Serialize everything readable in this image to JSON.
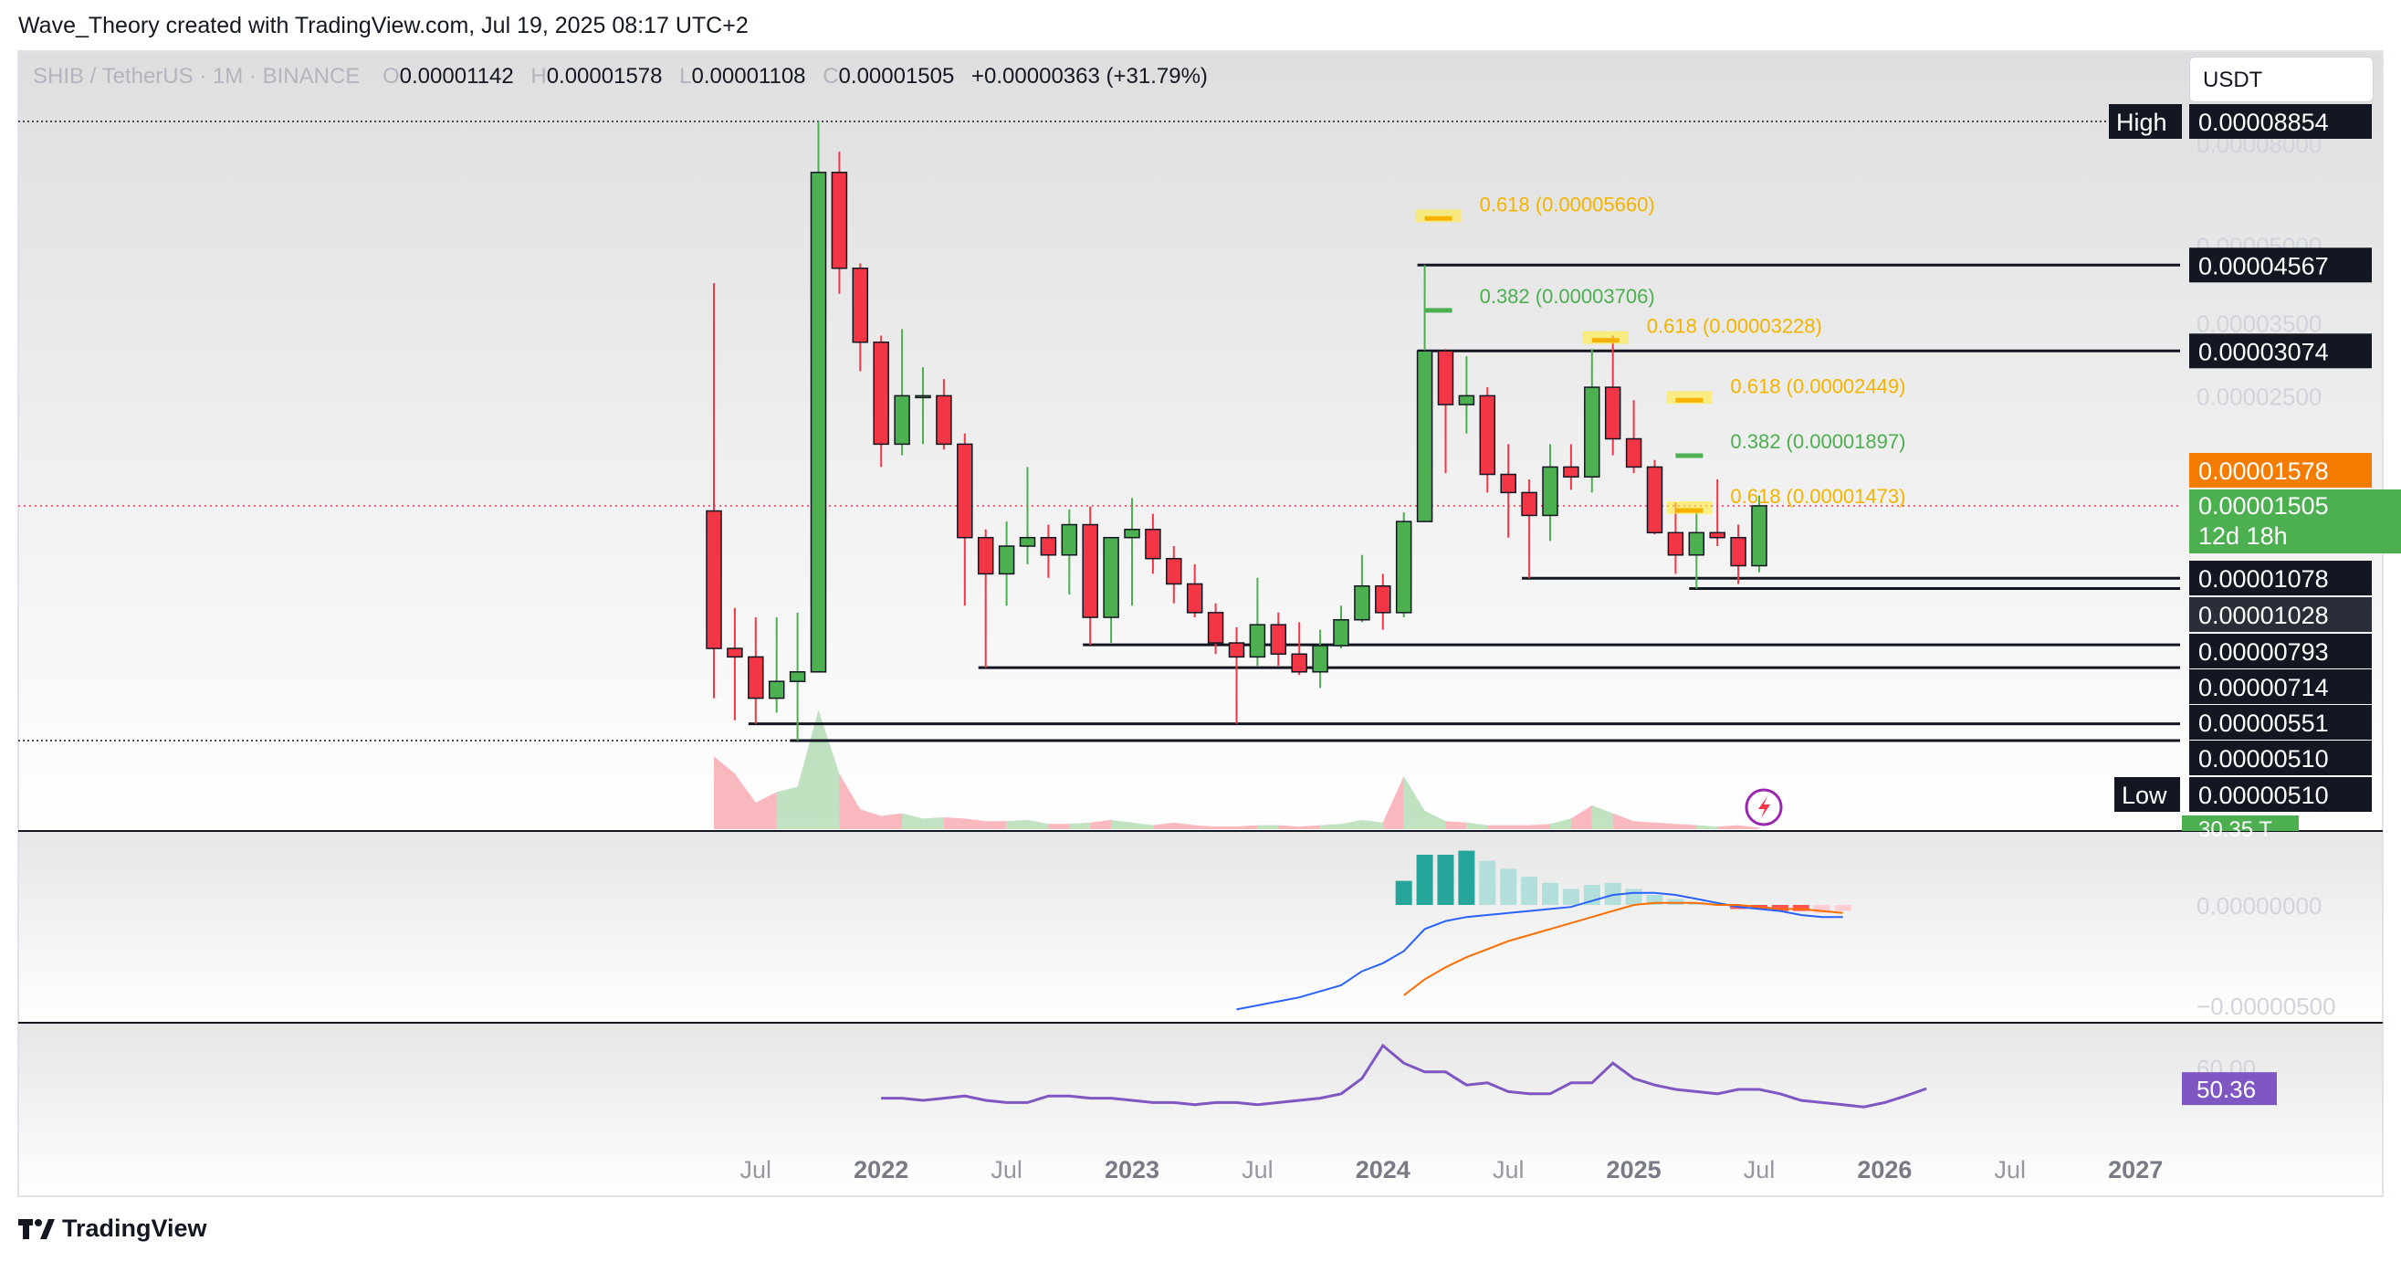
{
  "header": {
    "credit": "Wave_Theory created with TradingView.com, Jul 19, 2025 08:17 UTC+2"
  },
  "legend": {
    "symbol": "SHIB / TetherUS · 1M · BINANCE",
    "open_label": "O",
    "open": "0.00001142",
    "high_label": "H",
    "high": "0.00001578",
    "low_label": "L",
    "low": "0.00001108",
    "close_label": "C",
    "close": "0.00001505",
    "change": "+0.00000363 (+31.79%)"
  },
  "currency": "USDT",
  "footer": {
    "brand": "TradingView",
    "logo_icon": "tradingview-logo-icon"
  },
  "colors": {
    "up": "#4caf50",
    "down": "#f23645",
    "fib_gold": "#f5b300",
    "fib_green": "#4caf50",
    "macd": "#2962ff",
    "signal": "#ff6d00",
    "rsi": "#7e57c2",
    "last_price": "#f23645"
  },
  "chart_data": [
    {
      "type": "candlestick",
      "title": "SHIB / TetherUS · 1M · BINANCE",
      "x_tick_labels": [
        "Jul",
        "2022",
        "Jul",
        "2023",
        "Jul",
        "2024",
        "Jul",
        "2025",
        "Jul",
        "2026",
        "Jul",
        "2027"
      ],
      "x_ticks": [
        "2021-07",
        "2022-01",
        "2022-07",
        "2023-01",
        "2023-07",
        "2024-01",
        "2024-07",
        "2025-01",
        "2025-07",
        "2026-01",
        "2026-07",
        "2027-01"
      ],
      "y_scale": "log",
      "y_tick_labels": [
        "0.00008000",
        "0.00005000",
        "0.00003500",
        "0.00002500"
      ],
      "ohlc": [
        {
          "t": "2021-05",
          "o": 1.47e-05,
          "h": 4.2e-05,
          "l": 6.2e-06,
          "c": 7.8e-06
        },
        {
          "t": "2021-06",
          "o": 7.8e-06,
          "h": 9.4e-06,
          "l": 5.6e-06,
          "c": 7.5e-06
        },
        {
          "t": "2021-07",
          "o": 7.5e-06,
          "h": 9e-06,
          "l": 5.51e-06,
          "c": 6.2e-06
        },
        {
          "t": "2021-08",
          "o": 6.2e-06,
          "h": 9e-06,
          "l": 5.8e-06,
          "c": 6.7e-06
        },
        {
          "t": "2021-09",
          "o": 6.7e-06,
          "h": 9.2e-06,
          "l": 5.1e-06,
          "c": 7e-06
        },
        {
          "t": "2021-10",
          "o": 7e-06,
          "h": 8.854e-05,
          "l": 7e-06,
          "c": 7e-05
        },
        {
          "t": "2021-11",
          "o": 7e-05,
          "h": 7.7e-05,
          "l": 4e-05,
          "c": 4.5e-05
        },
        {
          "t": "2021-12",
          "o": 4.5e-05,
          "h": 4.6e-05,
          "l": 2.8e-05,
          "c": 3.2e-05
        },
        {
          "t": "2022-01",
          "o": 3.2e-05,
          "h": 3.3e-05,
          "l": 1.8e-05,
          "c": 2e-05
        },
        {
          "t": "2022-02",
          "o": 2e-05,
          "h": 3.4e-05,
          "l": 1.9e-05,
          "c": 2.5e-05
        },
        {
          "t": "2022-03",
          "o": 2.5e-05,
          "h": 2.85e-05,
          "l": 2e-05,
          "c": 2.5e-05
        },
        {
          "t": "2022-04",
          "o": 2.5e-05,
          "h": 2.7e-05,
          "l": 1.95e-05,
          "c": 2e-05
        },
        {
          "t": "2022-05",
          "o": 2e-05,
          "h": 2.1e-05,
          "l": 9.5e-06,
          "c": 1.3e-05
        },
        {
          "t": "2022-06",
          "o": 1.3e-05,
          "h": 1.35e-05,
          "l": 7.14e-06,
          "c": 1.1e-05
        },
        {
          "t": "2022-07",
          "o": 1.1e-05,
          "h": 1.4e-05,
          "l": 9.5e-06,
          "c": 1.25e-05
        },
        {
          "t": "2022-08",
          "o": 1.25e-05,
          "h": 1.8e-05,
          "l": 1.15e-05,
          "c": 1.3e-05
        },
        {
          "t": "2022-09",
          "o": 1.3e-05,
          "h": 1.38e-05,
          "l": 1.08e-05,
          "c": 1.2e-05
        },
        {
          "t": "2022-10",
          "o": 1.2e-05,
          "h": 1.48e-05,
          "l": 1e-05,
          "c": 1.38e-05
        },
        {
          "t": "2022-11",
          "o": 1.38e-05,
          "h": 1.5e-05,
          "l": 7.93e-06,
          "c": 9e-06
        },
        {
          "t": "2022-12",
          "o": 9e-06,
          "h": 1.3e-05,
          "l": 8e-06,
          "c": 1.3e-05
        },
        {
          "t": "2023-01",
          "o": 1.3e-05,
          "h": 1.56e-05,
          "l": 9.5e-06,
          "c": 1.35e-05
        },
        {
          "t": "2023-02",
          "o": 1.35e-05,
          "h": 1.45e-05,
          "l": 1.1e-05,
          "c": 1.18e-05
        },
        {
          "t": "2023-03",
          "o": 1.18e-05,
          "h": 1.25e-05,
          "l": 9.6e-06,
          "c": 1.05e-05
        },
        {
          "t": "2023-04",
          "o": 1.05e-05,
          "h": 1.15e-05,
          "l": 9e-06,
          "c": 9.2e-06
        },
        {
          "t": "2023-05",
          "o": 9.2e-06,
          "h": 9.6e-06,
          "l": 7.6e-06,
          "c": 8e-06
        },
        {
          "t": "2023-06",
          "o": 8e-06,
          "h": 8.6e-06,
          "l": 5.51e-06,
          "c": 7.5e-06
        },
        {
          "t": "2023-07",
          "o": 7.5e-06,
          "h": 1.08e-05,
          "l": 7.2e-06,
          "c": 8.7e-06
        },
        {
          "t": "2023-08",
          "o": 8.7e-06,
          "h": 9.2e-06,
          "l": 7.2e-06,
          "c": 7.6e-06
        },
        {
          "t": "2023-09",
          "o": 7.6e-06,
          "h": 8.8e-06,
          "l": 6.9e-06,
          "c": 7e-06
        },
        {
          "t": "2023-10",
          "o": 7e-06,
          "h": 8.5e-06,
          "l": 6.5e-06,
          "c": 7.9e-06
        },
        {
          "t": "2023-11",
          "o": 7.9e-06,
          "h": 9.5e-06,
          "l": 7.8e-06,
          "c": 8.9e-06
        },
        {
          "t": "2023-12",
          "o": 8.9e-06,
          "h": 1.2e-05,
          "l": 8.8e-06,
          "c": 1.04e-05
        },
        {
          "t": "2024-01",
          "o": 1.04e-05,
          "h": 1.1e-05,
          "l": 8.5e-06,
          "c": 9.2e-06
        },
        {
          "t": "2024-02",
          "o": 9.2e-06,
          "h": 1.46e-05,
          "l": 9e-06,
          "c": 1.4e-05
        },
        {
          "t": "2024-03",
          "o": 1.4e-05,
          "h": 4.567e-05,
          "l": 1.4e-05,
          "c": 3.074e-05
        },
        {
          "t": "2024-04",
          "o": 3.074e-05,
          "h": 3.1e-05,
          "l": 1.75e-05,
          "c": 2.4e-05
        },
        {
          "t": "2024-05",
          "o": 2.4e-05,
          "h": 3e-05,
          "l": 2.1e-05,
          "c": 2.5e-05
        },
        {
          "t": "2024-06",
          "o": 2.5e-05,
          "h": 2.6e-05,
          "l": 1.6e-05,
          "c": 1.74e-05
        },
        {
          "t": "2024-07",
          "o": 1.74e-05,
          "h": 2e-05,
          "l": 1.3e-05,
          "c": 1.6e-05
        },
        {
          "t": "2024-08",
          "o": 1.6e-05,
          "h": 1.7e-05,
          "l": 1.078e-05,
          "c": 1.44e-05
        },
        {
          "t": "2024-09",
          "o": 1.44e-05,
          "h": 2e-05,
          "l": 1.28e-05,
          "c": 1.8e-05
        },
        {
          "t": "2024-10",
          "o": 1.8e-05,
          "h": 2e-05,
          "l": 1.62e-05,
          "c": 1.72e-05
        },
        {
          "t": "2024-11",
          "o": 1.72e-05,
          "h": 3.1e-05,
          "l": 1.6e-05,
          "c": 2.6e-05
        },
        {
          "t": "2024-12",
          "o": 2.6e-05,
          "h": 3.3e-05,
          "l": 1.9e-05,
          "c": 2.05e-05
        },
        {
          "t": "2025-01",
          "o": 2.05e-05,
          "h": 2.45e-05,
          "l": 1.75e-05,
          "c": 1.8e-05
        },
        {
          "t": "2025-02",
          "o": 1.8e-05,
          "h": 1.86e-05,
          "l": 1.32e-05,
          "c": 1.33e-05
        },
        {
          "t": "2025-03",
          "o": 1.33e-05,
          "h": 1.53e-05,
          "l": 1.1e-05,
          "c": 1.2e-05
        },
        {
          "t": "2025-04",
          "o": 1.2e-05,
          "h": 1.46e-05,
          "l": 1.028e-05,
          "c": 1.33e-05
        },
        {
          "t": "2025-05",
          "o": 1.33e-05,
          "h": 1.7e-05,
          "l": 1.25e-05,
          "c": 1.3e-05
        },
        {
          "t": "2025-06",
          "o": 1.3e-05,
          "h": 1.38e-05,
          "l": 1.05e-05,
          "c": 1.142e-05
        },
        {
          "t": "2025-07",
          "o": 1.142e-05,
          "h": 1.578e-05,
          "l": 1.108e-05,
          "c": 1.505e-05
        }
      ],
      "volume_label": "30.35 T",
      "volume": [
        55,
        42,
        20,
        28,
        32,
        90,
        42,
        15,
        10,
        12,
        8,
        9,
        8,
        6,
        6,
        7,
        4,
        4,
        5,
        7,
        5,
        3,
        5,
        3,
        2,
        2,
        3,
        3,
        2,
        3,
        4,
        7,
        5,
        40,
        14,
        6,
        5,
        3,
        3,
        3,
        4,
        8,
        18,
        12,
        6,
        5,
        4,
        3,
        2,
        3,
        1
      ],
      "horizontal_levels": [
        {
          "value": "0.00004567",
          "start": "2024-03"
        },
        {
          "value": "0.00003074",
          "start": "2024-03"
        },
        {
          "value": "0.00001078",
          "start": "2024-08"
        },
        {
          "value": "0.00001028",
          "start": "2025-04"
        },
        {
          "value": "0.00000793",
          "start": "2022-11"
        },
        {
          "value": "0.00000714",
          "start": "2022-06"
        },
        {
          "value": "0.00000551",
          "start": "2021-07"
        },
        {
          "value": "0.00000510",
          "start": "2021-09"
        }
      ],
      "fib_labels": [
        {
          "text": "0.618 (0.00005660)",
          "value": 5.66e-05,
          "t": "2024-03",
          "color": "gold"
        },
        {
          "text": "0.382 (0.00003706)",
          "value": 3.706e-05,
          "t": "2024-03",
          "color": "green"
        },
        {
          "text": "0.618 (0.00003228)",
          "value": 3.228e-05,
          "t": "2024-11",
          "color": "gold"
        },
        {
          "text": "0.618 (0.00002449)",
          "value": 2.449e-05,
          "t": "2025-03",
          "color": "gold"
        },
        {
          "text": "0.382 (0.00001897)",
          "value": 1.897e-05,
          "t": "2025-03",
          "color": "green"
        },
        {
          "text": "0.618 (0.00001473)",
          "value": 1.473e-05,
          "t": "2025-03",
          "color": "gold"
        }
      ],
      "price_labels": {
        "high_tag": "High",
        "high": "0.00008854",
        "low_tag": "Low",
        "low": "0.00000510",
        "last_high": "0.00001578",
        "last_close": "0.00001505",
        "countdown": "12d 18h"
      }
    },
    {
      "type": "line",
      "title": "MACD",
      "y_tick_labels": [
        "0.00000000",
        "−0.00000500"
      ],
      "series": [
        {
          "name": "",
          "values": [
            -5.2e-06,
            -5e-06,
            -4.8e-06,
            -4.6e-06,
            -4.3e-06,
            -4e-06,
            -3.3e-06,
            -2.9e-06,
            -2.3e-06,
            -1.2e-06,
            -8e-07,
            -6e-07,
            -5e-07,
            -4e-07,
            -3e-07,
            -2e-07,
            -1e-07,
            2e-07,
            5e-07,
            6e-07,
            6e-07,
            5e-07,
            3e-07,
            1e-07,
            -1e-07,
            -2e-07,
            -3e-07,
            -5e-07,
            -6e-07,
            -6e-07
          ]
        },
        {
          "name": "",
          "values": [
            null,
            null,
            null,
            null,
            null,
            null,
            null,
            null,
            -4.5e-06,
            -3.7e-06,
            -3.1e-06,
            -2.6e-06,
            -2.2e-06,
            -1.8e-06,
            -1.5e-06,
            -1.2e-06,
            -9e-07,
            -6e-07,
            -3e-07,
            0.0,
            1e-07,
            1e-07,
            1e-07,
            0.0,
            0.0,
            -1e-07,
            -2e-07,
            -2e-07,
            -3e-07,
            -4e-07
          ]
        }
      ],
      "histogram": [
        0,
        0,
        0,
        0,
        0,
        0,
        0,
        0,
        1.2e-06,
        2.5e-06,
        2.5e-06,
        2.7e-06,
        2.2e-06,
        1.8e-06,
        1.4e-06,
        1.1e-06,
        8e-07,
        1e-06,
        1.1e-06,
        8e-07,
        5e-07,
        3e-07,
        1e-07,
        1e-07,
        -2e-07,
        -2e-07,
        -3e-07,
        -3e-07,
        -4e-07,
        -3e-07
      ]
    },
    {
      "type": "line",
      "title": "RSI",
      "y_tick_labels": [
        "60.00"
      ],
      "last_value": "50.36",
      "series": [
        {
          "name": "",
          "values": [
            46,
            46,
            45,
            46,
            47,
            45,
            44,
            44,
            47,
            47,
            46,
            46,
            45,
            44,
            44,
            43,
            44,
            44,
            43,
            44,
            45,
            46,
            48,
            55,
            70,
            62,
            58,
            58,
            52,
            53,
            49,
            48,
            48,
            53,
            53,
            62,
            55,
            52,
            50,
            49,
            48,
            50,
            50,
            48,
            45,
            44,
            43,
            42,
            44,
            47,
            50.36
          ]
        }
      ]
    }
  ]
}
